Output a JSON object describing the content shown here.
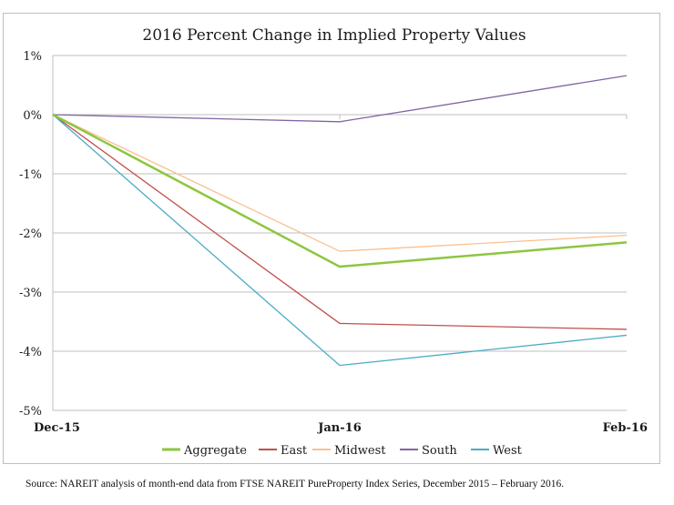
{
  "chart_data": {
    "type": "line",
    "title": "2016 Percent Change in Implied Property Values",
    "categories": [
      "Dec-15",
      "Jan-16",
      "Feb-16"
    ],
    "yticks": [
      "1%",
      "0%",
      "-1%",
      "-2%",
      "-3%",
      "-4%",
      "-5%"
    ],
    "ylim": [
      -5,
      1
    ],
    "y_unit": "%",
    "grid": "horizontal",
    "legend_position": "bottom",
    "series": [
      {
        "name": "Aggregate",
        "color": "#8dc63f",
        "width": 2.5,
        "values": [
          0,
          -2.57,
          -2.16
        ]
      },
      {
        "name": "East",
        "color": "#c0504d",
        "width": 1.3,
        "values": [
          0,
          -3.53,
          -3.63
        ]
      },
      {
        "name": "Midwest",
        "color": "#fac090",
        "width": 1.3,
        "values": [
          0,
          -2.31,
          -2.04
        ]
      },
      {
        "name": "South",
        "color": "#8064a2",
        "width": 1.3,
        "values": [
          0,
          -0.12,
          0.66
        ]
      },
      {
        "name": "West",
        "color": "#4bacc6",
        "width": 1.3,
        "values": [
          0,
          -4.24,
          -3.73
        ]
      }
    ]
  },
  "source_note": "Source: NAREIT analysis of month-end data from FTSE NAREIT PureProperty Index Series, December 2015 – February 2016."
}
